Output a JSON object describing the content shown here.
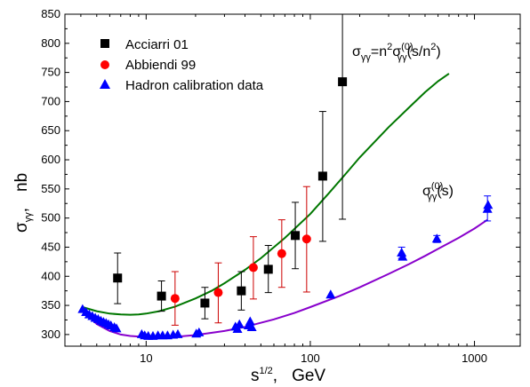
{
  "chart_data": {
    "type": "scatter",
    "x_scale": "log",
    "xlim": [
      3.2,
      1900
    ],
    "ylim": [
      280,
      850
    ],
    "x_ticks": [
      10,
      100,
      1000
    ],
    "x_tick_labels": [
      "10",
      "100",
      "1000"
    ],
    "y_ticks": [
      300,
      350,
      400,
      450,
      500,
      550,
      600,
      650,
      700,
      750,
      800,
      850
    ],
    "y_tick_labels": [
      "300",
      "350",
      "400",
      "450",
      "500",
      "550",
      "600",
      "650",
      "700",
      "750",
      "800",
      "850"
    ],
    "xlabel": {
      "base": "s",
      "sup": "1/2",
      "sep": ",",
      "unit": "GeV"
    },
    "ylabel": {
      "base": "σ",
      "sub": "γγ",
      "sep": ",",
      "unit": "nb"
    },
    "legend_position": "top-left",
    "grid": false,
    "series": [
      {
        "name": "Acciarri  01",
        "marker": "square",
        "color": "#000000",
        "error_color": "#000000",
        "points": [
          {
            "x": 6.7,
            "y": 397,
            "ylo": 353,
            "yhi": 440
          },
          {
            "x": 12.4,
            "y": 366,
            "ylo": 340,
            "yhi": 392
          },
          {
            "x": 22.8,
            "y": 354,
            "ylo": 327,
            "yhi": 381
          },
          {
            "x": 38,
            "y": 375,
            "ylo": 342,
            "yhi": 408
          },
          {
            "x": 55.5,
            "y": 412,
            "ylo": 372,
            "yhi": 453
          },
          {
            "x": 81,
            "y": 470,
            "ylo": 413,
            "yhi": 527
          },
          {
            "x": 119,
            "y": 572,
            "ylo": 460,
            "yhi": 683
          },
          {
            "x": 157,
            "y": 734,
            "ylo": 498,
            "yhi": 850
          }
        ]
      },
      {
        "name": "Abbiendi 99",
        "marker": "circle",
        "color": "#ff0000",
        "error_color": "#cc0000",
        "points": [
          {
            "x": 15,
            "y": 362,
            "ylo": 316,
            "yhi": 408
          },
          {
            "x": 27.5,
            "y": 372,
            "ylo": 320,
            "yhi": 423
          },
          {
            "x": 45,
            "y": 415,
            "ylo": 361,
            "yhi": 468
          },
          {
            "x": 67,
            "y": 439,
            "ylo": 381,
            "yhi": 497
          },
          {
            "x": 95,
            "y": 464,
            "ylo": 373,
            "yhi": 554
          }
        ]
      },
      {
        "name": "Hadron calibration data",
        "marker": "triangle",
        "color": "#0000ff",
        "error_color": "#0000ff",
        "points": [
          {
            "x": 4.1,
            "y": 343
          },
          {
            "x": 4.3,
            "y": 338
          },
          {
            "x": 4.5,
            "y": 334
          },
          {
            "x": 4.7,
            "y": 331
          },
          {
            "x": 4.9,
            "y": 328
          },
          {
            "x": 5.1,
            "y": 326
          },
          {
            "x": 5.3,
            "y": 323
          },
          {
            "x": 5.5,
            "y": 321
          },
          {
            "x": 5.7,
            "y": 319
          },
          {
            "x": 5.9,
            "y": 317
          },
          {
            "x": 6.1,
            "y": 315
          },
          {
            "x": 6.4,
            "y": 312
          },
          {
            "x": 6.6,
            "y": 310
          },
          {
            "x": 9.4,
            "y": 300
          },
          {
            "x": 9.8,
            "y": 298
          },
          {
            "x": 10.3,
            "y": 297
          },
          {
            "x": 11.0,
            "y": 297
          },
          {
            "x": 11.8,
            "y": 298
          },
          {
            "x": 12.6,
            "y": 298
          },
          {
            "x": 13.5,
            "y": 298
          },
          {
            "x": 14.6,
            "y": 299
          },
          {
            "x": 15.6,
            "y": 300
          },
          {
            "x": 20.2,
            "y": 301
          },
          {
            "x": 21.0,
            "y": 303
          },
          {
            "x": 35,
            "y": 313
          },
          {
            "x": 36,
            "y": 309
          },
          {
            "x": 37,
            "y": 317
          },
          {
            "x": 42,
            "y": 315
          },
          {
            "x": 43,
            "y": 322
          },
          {
            "x": 44,
            "y": 312
          },
          {
            "x": 133,
            "y": 368
          },
          {
            "x": 360,
            "y": 440,
            "ylo": 431,
            "yhi": 450
          },
          {
            "x": 365,
            "y": 433
          },
          {
            "x": 590,
            "y": 464,
            "ylo": 458,
            "yhi": 470
          },
          {
            "x": 1200,
            "y": 515,
            "ylo": 495,
            "yhi": 538
          },
          {
            "x": 1210,
            "y": 522
          }
        ]
      }
    ],
    "curves": [
      {
        "label": {
          "base": "σ",
          "sub1": "γγ",
          "mid": "=n",
          "sup1": "2",
          "mid2": "σ",
          "sup2": "(0)",
          "sub2": "γγ",
          "tail": "(s/n",
          "sup3": "2",
          "end": ")"
        },
        "color": "#007700",
        "points": [
          [
            4.1,
            347
          ],
          [
            5,
            340
          ],
          [
            6,
            336
          ],
          [
            7,
            334.5
          ],
          [
            8,
            334
          ],
          [
            9,
            334.5
          ],
          [
            10,
            336
          ],
          [
            12,
            340
          ],
          [
            15,
            348
          ],
          [
            20,
            362
          ],
          [
            25,
            375
          ],
          [
            30,
            388
          ],
          [
            40,
            411
          ],
          [
            50,
            431
          ],
          [
            70,
            466
          ],
          [
            100,
            507
          ],
          [
            130,
            543
          ],
          [
            160,
            572
          ],
          [
            200,
            604
          ],
          [
            300,
            656
          ],
          [
            400,
            690
          ],
          [
            500,
            716
          ],
          [
            600,
            735
          ],
          [
            700,
            748
          ]
        ]
      },
      {
        "label": {
          "base": "σ",
          "sup1": "(0)",
          "sub1": "γγ",
          "tail": "(s)"
        },
        "color": "#8800cc",
        "points": [
          [
            4.1,
            343
          ],
          [
            4.5,
            330
          ],
          [
            5,
            318
          ],
          [
            6,
            306
          ],
          [
            7,
            300
          ],
          [
            8,
            297.5
          ],
          [
            10,
            295.5
          ],
          [
            12,
            295
          ],
          [
            15,
            296
          ],
          [
            20,
            299
          ],
          [
            30,
            306
          ],
          [
            40,
            313
          ],
          [
            60,
            326
          ],
          [
            80,
            337
          ],
          [
            100,
            347
          ],
          [
            150,
            366
          ],
          [
            200,
            381
          ],
          [
            300,
            404
          ],
          [
            400,
            421
          ],
          [
            500,
            435
          ],
          [
            600,
            447
          ],
          [
            800,
            466
          ],
          [
            1000,
            482
          ],
          [
            1200,
            497
          ]
        ]
      }
    ]
  }
}
